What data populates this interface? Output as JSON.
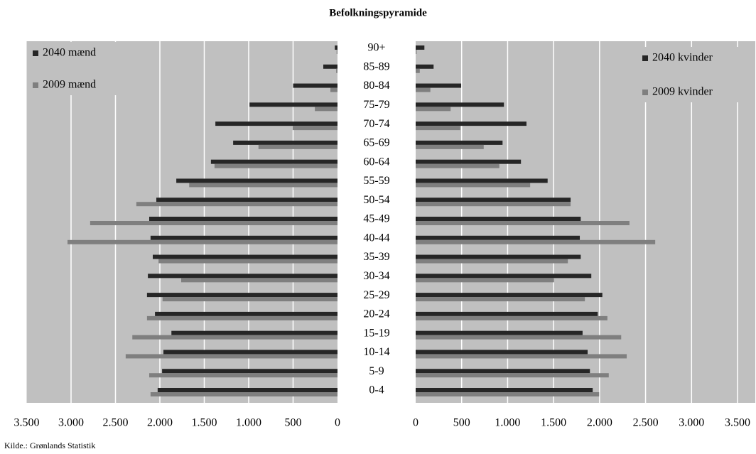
{
  "chart_data": {
    "type": "bar",
    "orientation": "horizontal",
    "title": "Befolkningspyramide",
    "source": "Kilde.: Grønlands Statistik",
    "categories": [
      "0-4",
      "5-9",
      "10-14",
      "15-19",
      "20-24",
      "25-29",
      "30-34",
      "35-39",
      "40-44",
      "45-49",
      "50-54",
      "55-59",
      "60-64",
      "65-69",
      "70-74",
      "75-79",
      "80-84",
      "85-89",
      "90+"
    ],
    "grid": true,
    "background": "#c0c0c0",
    "panels": [
      {
        "xlim": [
          3500,
          0
        ],
        "xticks": [
          {
            "value": 3500,
            "label": "3.500"
          },
          {
            "value": 3000,
            "label": "3.000"
          },
          {
            "value": 2500,
            "label": "2.500"
          },
          {
            "value": 2000,
            "label": "2.000"
          },
          {
            "value": 1500,
            "label": "1.500"
          },
          {
            "value": 1000,
            "label": "1.000"
          },
          500,
          0
        ],
        "legend": "top-left",
        "series": [
          {
            "name": "2040 mænd",
            "color": "#262626",
            "values": [
              2025,
              1975,
              1960,
              1870,
              2055,
              2145,
              2135,
              2080,
              2105,
              2120,
              2040,
              1815,
              1425,
              1175,
              1375,
              990,
              500,
              160,
              30
            ]
          },
          {
            "name": "2009 mænd",
            "color": "#7f7f7f",
            "values": [
              2105,
              2120,
              2385,
              2310,
              2145,
              1970,
              1760,
              2015,
              3040,
              2785,
              2265,
              1670,
              1385,
              890,
              505,
              255,
              80,
              15,
              10
            ]
          }
        ]
      },
      {
        "xlim": [
          0,
          3500
        ],
        "xticks": [
          0,
          500,
          {
            "value": 1000,
            "label": "1.000"
          },
          {
            "value": 1500,
            "label": "1.500"
          },
          {
            "value": 2000,
            "label": "2.000"
          },
          {
            "value": 2500,
            "label": "2.500"
          },
          {
            "value": 3000,
            "label": "3.000"
          },
          {
            "value": 3500,
            "label": "3.500"
          }
        ],
        "legend": "top-right",
        "series": [
          {
            "name": "2040 kvinder",
            "color": "#262626",
            "values": [
              1925,
              1895,
              1870,
              1815,
              1980,
              2030,
              1910,
              1795,
              1785,
              1795,
              1685,
              1435,
              1145,
              945,
              1205,
              960,
              495,
              195,
              95
            ]
          },
          {
            "name": "2009 kvinder",
            "color": "#7f7f7f",
            "values": [
              1995,
              2100,
              2295,
              2235,
              2085,
              1840,
              1505,
              1655,
              2605,
              2325,
              1685,
              1245,
              910,
              740,
              485,
              380,
              160,
              45,
              10
            ]
          }
        ]
      }
    ]
  }
}
